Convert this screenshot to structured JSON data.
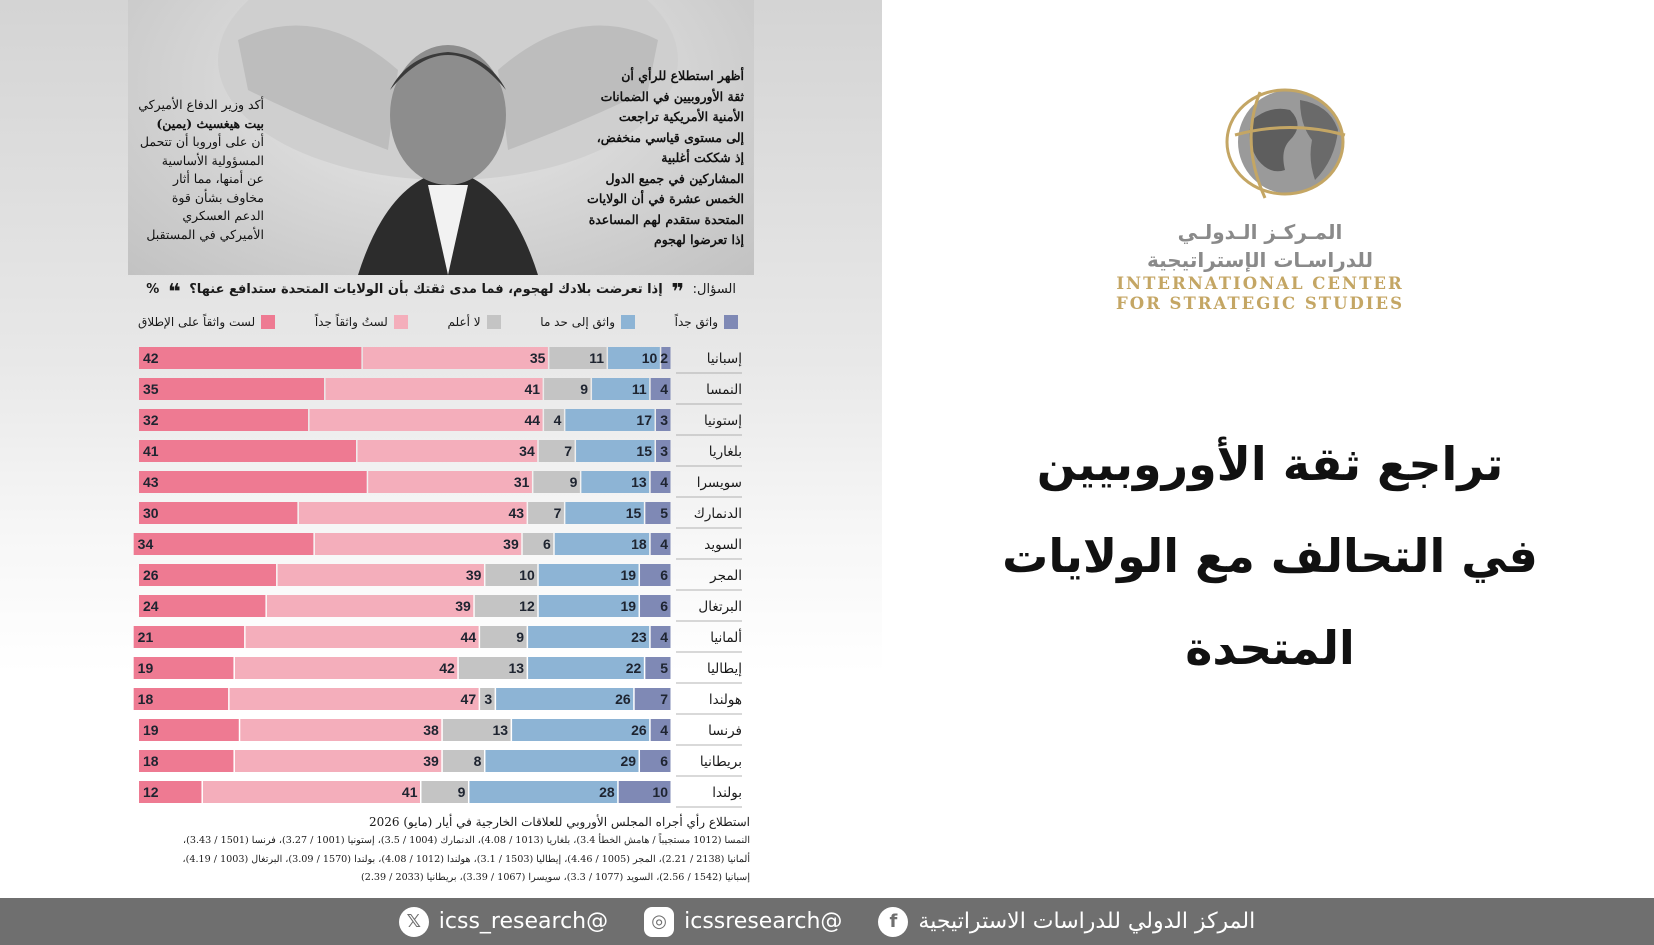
{
  "captions": {
    "right": [
      "أظهر استطلاع للرأي أن",
      "ثقة الأوروبيين في الضمانات",
      "الأمنية الأمريكية تراجعت",
      "إلى مستوى قياسي منخفض،",
      "إذ شككت أغلبية",
      "المشاركين في جميع الدول",
      "الخمس عشرة في أن الولايات",
      "المتحدة ستقدم لهم المساعدة",
      "إذا تعرضوا لهجوم"
    ],
    "left": [
      "أكد وزير الدفاع الأميركي",
      "بيت هيغسيث (يمين)",
      "أن على أوروبا أن تتحمل",
      "المسؤولية الأساسية",
      "عن أمنها، مما أثار",
      "مخاوف بشأن قوة",
      "الدعم العسكري",
      "الأميركي في المستقبل"
    ]
  },
  "question": {
    "label": "السؤال:",
    "text": "إذا تعرضت بلادك لهجوم، فما مدى ثقتك بأن الولايات المتحدة ستدافع عنها؟",
    "unit": "%",
    "open_quote": "❞",
    "close_quote": "❝"
  },
  "chart_data": {
    "type": "bar",
    "orientation": "horizontal-stacked",
    "categories": [
      "إسبانيا",
      "النمسا",
      "إستونيا",
      "بلغاريا",
      "سويسرا",
      "الدنمارك",
      "السويد",
      "المجر",
      "البرتغال",
      "ألمانيا",
      "إيطاليا",
      "هولندا",
      "فرنسا",
      "بريطانيا",
      "بولندا"
    ],
    "series": [
      {
        "name": "واثق جداً",
        "color": "#7f89b5",
        "values": [
          2,
          4,
          3,
          3,
          4,
          5,
          4,
          6,
          6,
          4,
          5,
          7,
          4,
          6,
          10
        ]
      },
      {
        "name": "واثق إلى حد ما",
        "color": "#8db4d5",
        "values": [
          10,
          11,
          17,
          15,
          13,
          15,
          18,
          19,
          19,
          23,
          22,
          26,
          26,
          29,
          28
        ]
      },
      {
        "name": "لا أعلم",
        "color": "#c4c4c4",
        "values": [
          11,
          9,
          4,
          7,
          9,
          7,
          6,
          10,
          12,
          9,
          13,
          3,
          13,
          8,
          9
        ]
      },
      {
        "name": "لستُ واثقاً جداً",
        "color": "#f4aebb",
        "values": [
          35,
          41,
          44,
          34,
          31,
          43,
          39,
          39,
          39,
          44,
          42,
          47,
          38,
          39,
          41
        ]
      },
      {
        "name": "لست واثقاً على الإطلاق",
        "color": "#ee7a92",
        "values": [
          42,
          35,
          32,
          41,
          43,
          30,
          34,
          26,
          24,
          21,
          19,
          18,
          19,
          18,
          12
        ]
      }
    ],
    "xlim": [
      0,
      100
    ],
    "unit": "%",
    "legend": "top"
  },
  "source": {
    "title": "استطلاع رأي أجراه المجلس الأوروبي للعلاقات الخارجية في أيار (مايو) 2026",
    "notes": [
      "النمسا (1012 مستجيباً / هامش الخطأ 3.4)، بلغاريا (1013 / 4.08)، الدنمارك (1004 / 3.5)، إستونيا (1001 / 3.27)، فرنسا (1501 / 3.43)،",
      "ألمانيا (2138 / 2.21)، المجر (1005 / 4.46)، إيطاليا (1503 / 3.1)، هولندا (1012 / 4.08)، بولندا (1570 / 3.09)، البرتغال (1003 / 4.19)،",
      "إسبانيا (1542 / 2.56)، السويد (1077 / 3.3)، سويسرا (1067 / 3.39)، بريطانيا (2033 / 2.39)"
    ]
  },
  "logo": {
    "arabic_line1": "المـركـز الـدولـي",
    "arabic_line2": "للدراسـات الإستراتيجية",
    "english_line1": "INTERNATIONAL CENTER",
    "english_line2": "FOR STRATEGIC STUDIES",
    "gold": "#c4a664",
    "gray": "#8a8a8a"
  },
  "headline": {
    "line1": "تراجع ثقة الأوروبيين",
    "line2": "في التحالف مع الولايات المتحدة"
  },
  "footer": {
    "org_name": "المركز الدولي للدراسات الاستراتيجية",
    "facebook_icon": "facebook-icon",
    "instagram_handle": "@icssresearch",
    "instagram_icon": "instagram-icon",
    "x_handle": "@icss_research",
    "x_icon": "x-icon",
    "bg_color": "#6f6f6f"
  }
}
